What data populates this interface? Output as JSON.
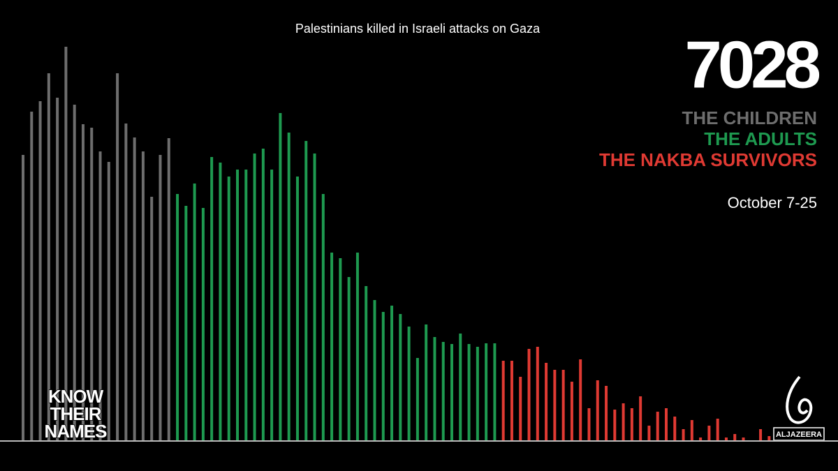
{
  "chart_data": {
    "type": "bar",
    "title": "Palestinians killed in Israeli attacks on Gaza",
    "total": "7028",
    "date": "October 7-25",
    "logo": [
      "KNOW",
      "THEIR",
      "NAMES"
    ],
    "brand": "ALJAZEERA",
    "ylim": [
      0,
      570
    ],
    "series": [
      {
        "name": "THE CHILDREN",
        "color": "#6e6e6e",
        "values": [
          410,
          472,
          487,
          527,
          492,
          565,
          482,
          454,
          449,
          415,
          400,
          527,
          455,
          435,
          415,
          350,
          410,
          434
        ]
      },
      {
        "name": "THE ADULTS",
        "color": "#1e9a50",
        "values": [
          354,
          337,
          369,
          334,
          407,
          399,
          379,
          389,
          389,
          412,
          419,
          389,
          470,
          442,
          379,
          430,
          412,
          354,
          270,
          262,
          235,
          270,
          222,
          202,
          185,
          194,
          182,
          164,
          119,
          167,
          149,
          142,
          139,
          154,
          139,
          135,
          140,
          140
        ]
      },
      {
        "name": "THE NAKBA SURVIVORS",
        "color": "#e03a33",
        "values": [
          115,
          115,
          92,
          132,
          135,
          112,
          102,
          102,
          85,
          117,
          47,
          87,
          79,
          45,
          54,
          47,
          64,
          22,
          42,
          47,
          35,
          17,
          30,
          5,
          22,
          32,
          5,
          10,
          5,
          0,
          17,
          7
        ]
      }
    ]
  }
}
